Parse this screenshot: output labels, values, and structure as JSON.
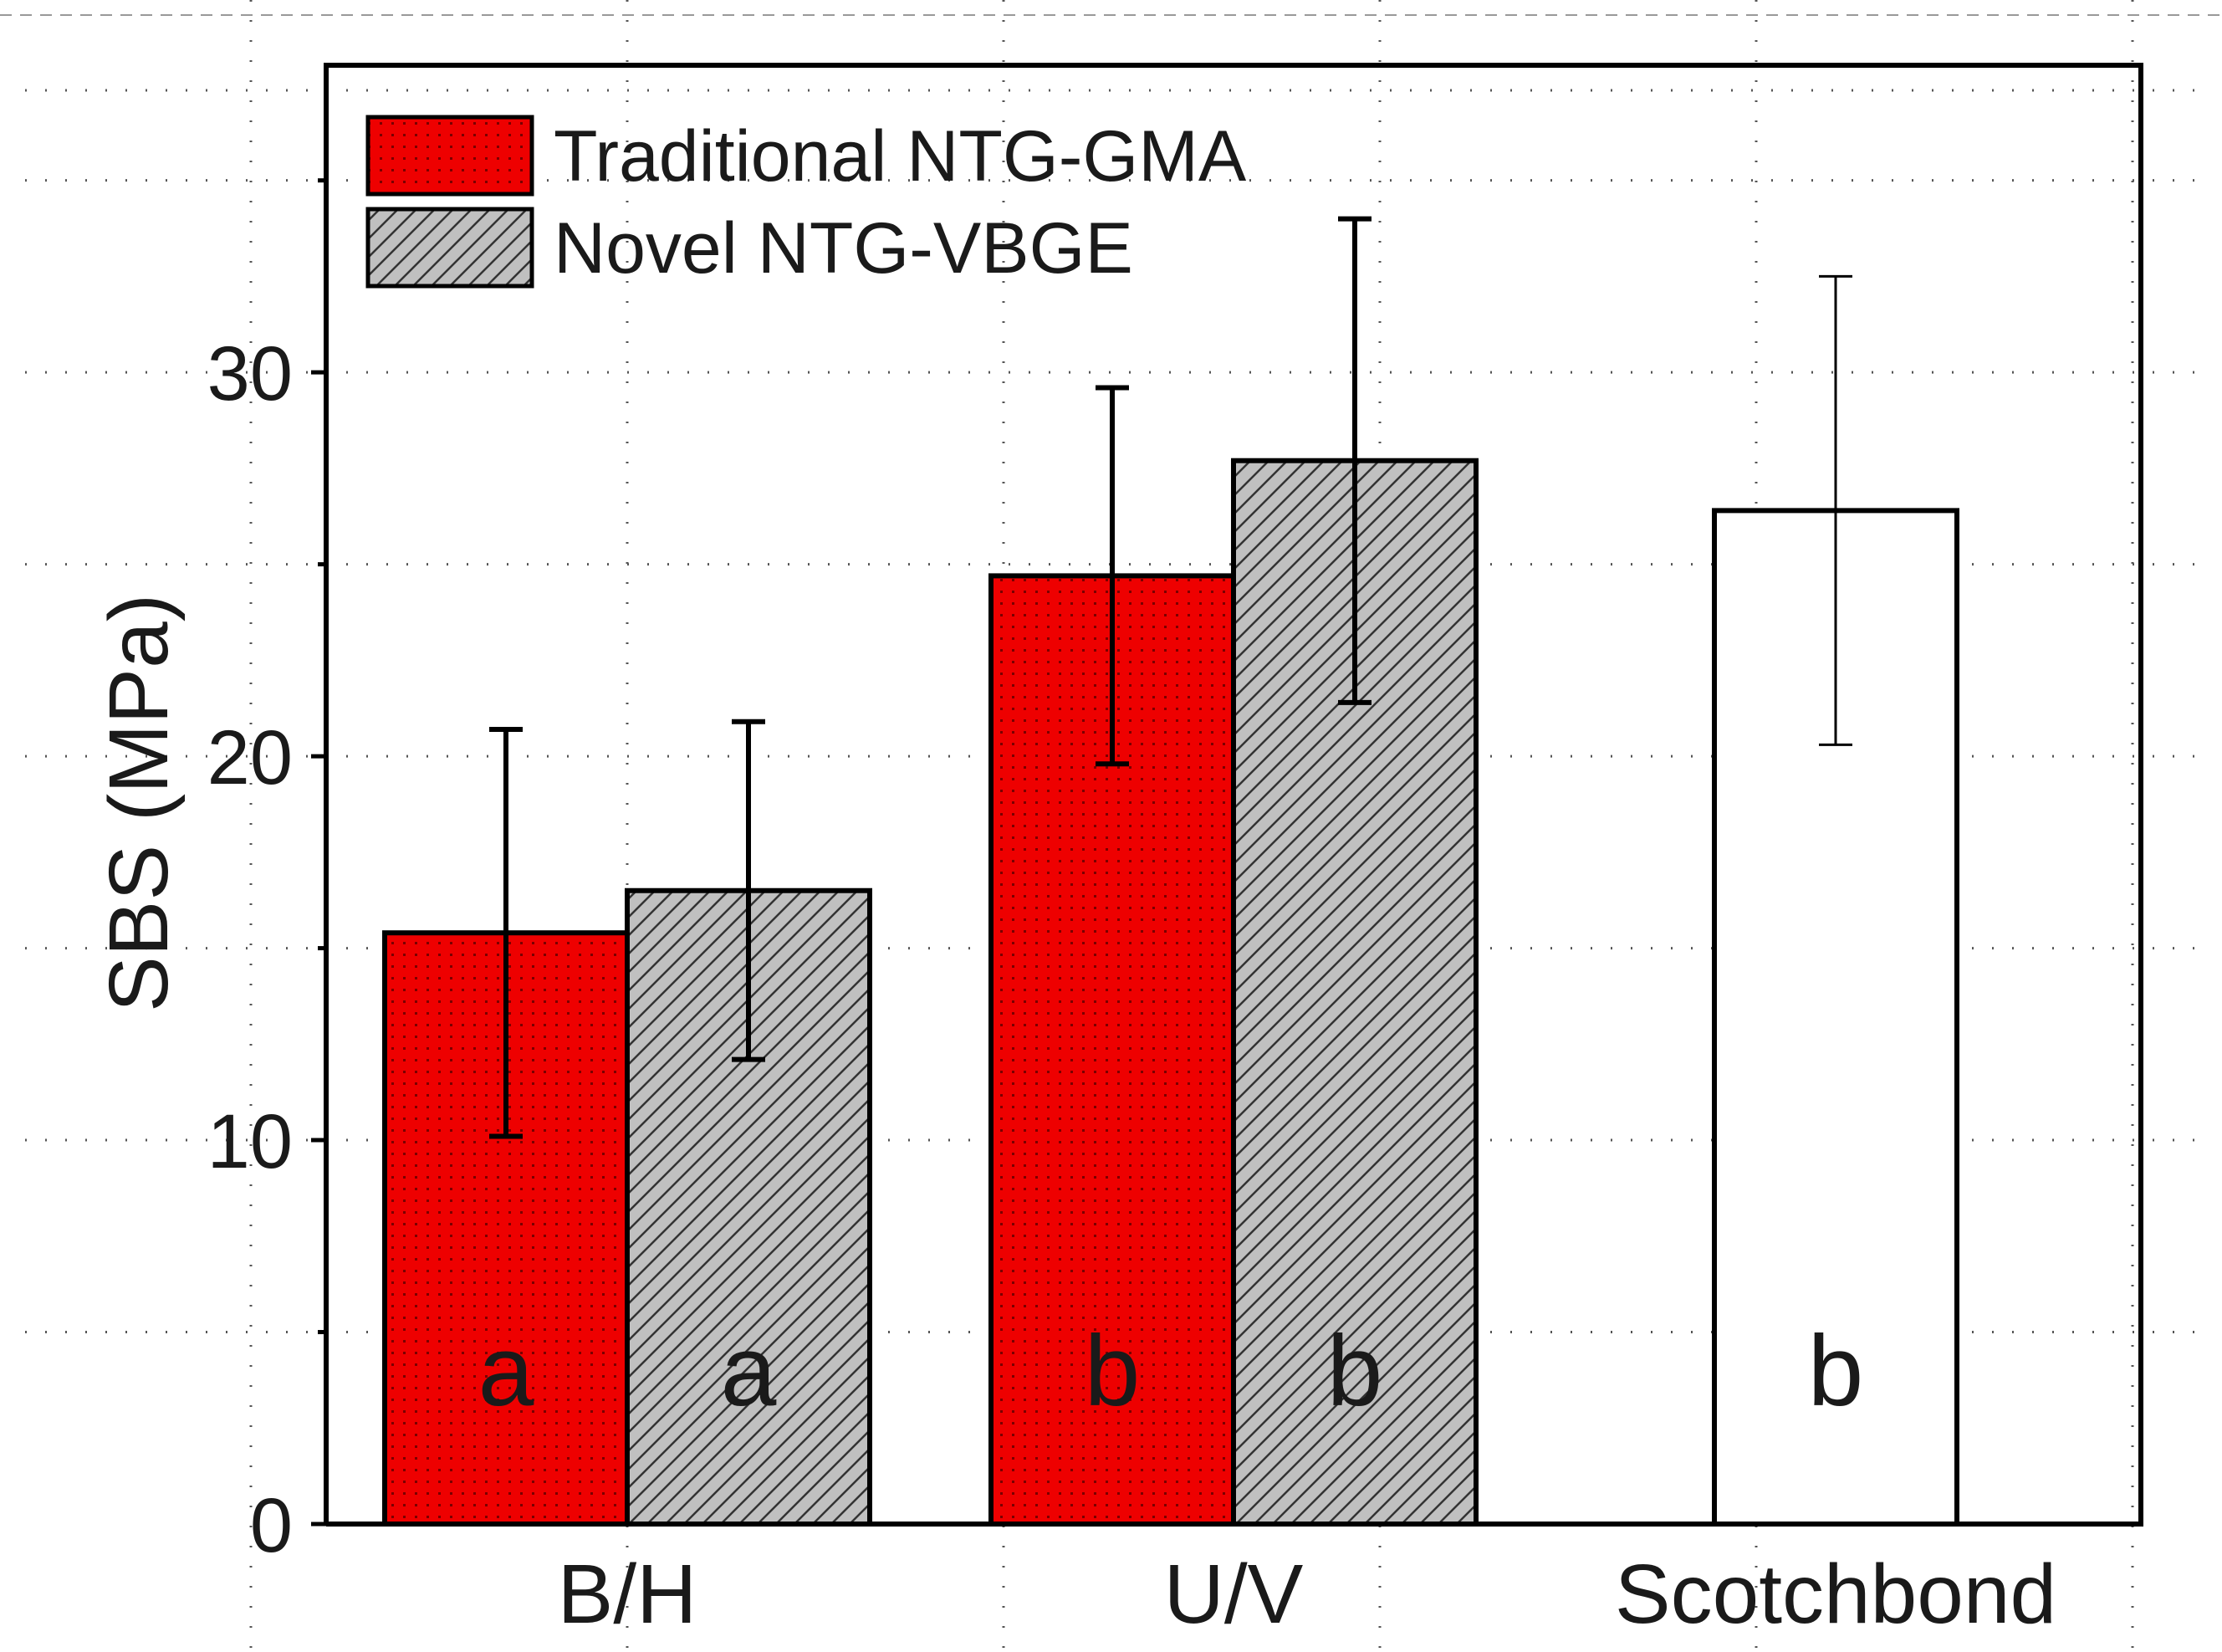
{
  "chart_data": {
    "type": "bar",
    "title": "",
    "xlabel": "",
    "ylabel": "SBS (MPa)",
    "ylim": [
      0,
      38
    ],
    "yticks": [
      0,
      10,
      20,
      30
    ],
    "categories": [
      "B/H",
      "U/V",
      "Scotchbond"
    ],
    "series": [
      {
        "name": "Traditional NTG-GMA",
        "color": "#ee0000",
        "pattern": "dots",
        "values": [
          15.4,
          24.7,
          null
        ],
        "errors": [
          5.3,
          4.9,
          null
        ],
        "letters": [
          "a",
          "b",
          null
        ]
      },
      {
        "name": "Novel NTG-VBGE",
        "color": "#c0c0c0",
        "pattern": "hatch",
        "values": [
          16.5,
          27.7,
          null
        ],
        "errors": [
          4.4,
          6.3,
          null
        ],
        "letters": [
          "a",
          "b",
          null
        ]
      },
      {
        "name": "Scotchbond",
        "color": "#ffffff",
        "pattern": "none",
        "values": [
          null,
          null,
          26.4
        ],
        "errors": [
          null,
          null,
          6.1
        ],
        "letters": [
          null,
          null,
          "b"
        ]
      }
    ],
    "legend": {
      "position": "top-left",
      "entries": [
        "Traditional NTG-GMA",
        "Novel NTG-VBGE"
      ]
    },
    "grid": true
  }
}
